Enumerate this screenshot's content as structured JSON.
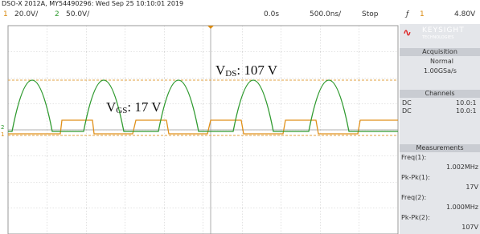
{
  "header": {
    "title": "DSO-X 2012A, MY54490296: Wed Sep 25 10:10:01 2019"
  },
  "status_bar": {
    "ch1": {
      "number": "1",
      "scale": "20.0V/"
    },
    "ch2": {
      "number": "2",
      "scale": "50.0V/"
    },
    "time_offset": "0.0s",
    "time_scale": "500.0ns/",
    "run_state": "Stop",
    "trigger": {
      "source": "1",
      "level": "4.80V"
    }
  },
  "side_panel": {
    "brand": "KEYSIGHT",
    "brand_sub": "TECHNOLOGIES",
    "acquisition": {
      "title": "Acquisition",
      "mode": "Normal",
      "rate": "1.00GSa/s"
    },
    "channels": {
      "title": "Channels",
      "rows": [
        [
          "DC",
          "10.0:1"
        ],
        [
          "DC",
          "10.0:1"
        ]
      ]
    },
    "measurements": {
      "title": "Measurements",
      "items": [
        {
          "label": "Freq(1):",
          "value": "1.002MHz"
        },
        {
          "label": "Pk-Pk(1):",
          "value": "17V"
        },
        {
          "label": "Freq(2):",
          "value": "1.000MHz"
        },
        {
          "label": "Pk-Pk(2):",
          "value": "107V"
        }
      ]
    }
  },
  "annotations": {
    "vds": {
      "symbol": "V",
      "subscript": "DS",
      "value": ": 107 V"
    },
    "vgs": {
      "symbol": "V",
      "subscript": "GS",
      "value": ": 17 V"
    }
  }
}
